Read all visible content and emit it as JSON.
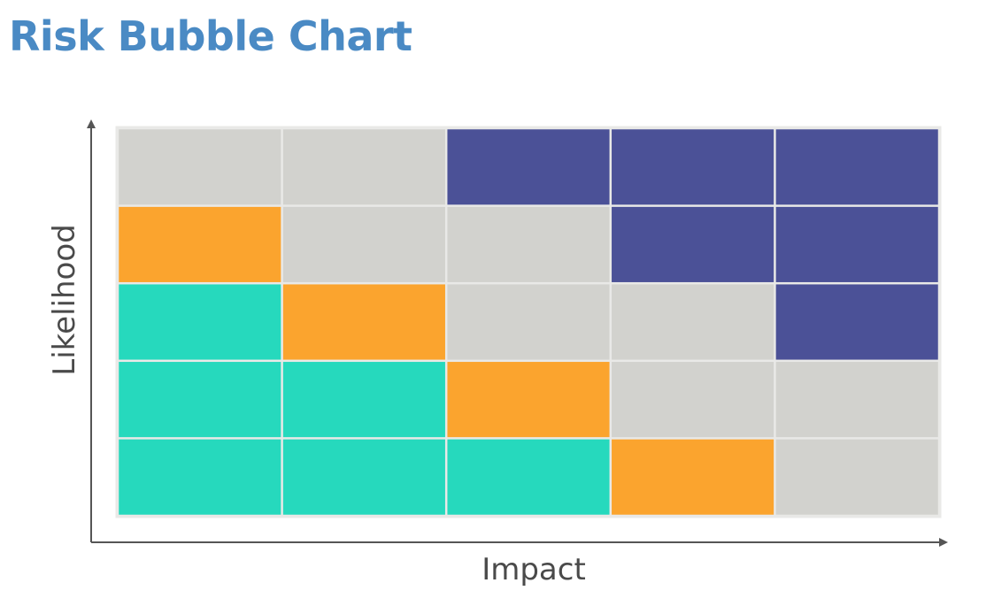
{
  "title": "Risk Bubble Chart",
  "colors": {
    "low": "#26d9bd",
    "medium": "#fba42e",
    "neutral": "#d2d2ce",
    "high": "#4b5197",
    "axis": "#4a4a4a",
    "title": "#4a8ac4"
  },
  "chart_data": {
    "type": "heatmap",
    "title": "Risk Bubble Chart",
    "xlabel": "Impact",
    "ylabel": "Likelihood",
    "columns": 5,
    "rows": 5,
    "grid_top_to_bottom": [
      [
        "neutral",
        "neutral",
        "high",
        "high",
        "high"
      ],
      [
        "medium",
        "neutral",
        "neutral",
        "high",
        "high"
      ],
      [
        "low",
        "medium",
        "neutral",
        "neutral",
        "high"
      ],
      [
        "low",
        "low",
        "medium",
        "neutral",
        "neutral"
      ],
      [
        "low",
        "low",
        "low",
        "medium",
        "neutral"
      ]
    ]
  }
}
